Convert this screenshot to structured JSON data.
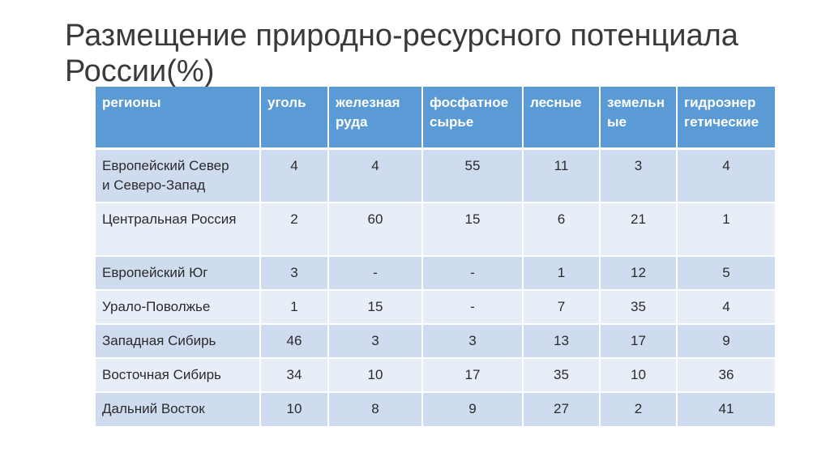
{
  "title": {
    "line1": "Размещение природно-ресурсного потенциала",
    "line2": "России(%)"
  },
  "table": {
    "headers": [
      {
        "line1": "регионы",
        "line2": ""
      },
      {
        "line1": "уголь",
        "line2": ""
      },
      {
        "line1": "железная",
        "line2": "руда"
      },
      {
        "line1": "фосфатное",
        "line2": "сырье"
      },
      {
        "line1": "лесные",
        "line2": ""
      },
      {
        "line1": "земельн",
        "line2": "ые"
      },
      {
        "line1": "гидроэнер",
        "line2": "гетические"
      }
    ],
    "rows": [
      {
        "region_line1": "Европейский Север",
        "region_line2": "и Северо-Запад",
        "cells": [
          "4",
          "4",
          "55",
          "11",
          "3",
          "4"
        ]
      },
      {
        "region_line1": "Центральная Россия",
        "region_line2": "",
        "cells": [
          "2",
          "60",
          "15",
          "6",
          "21",
          "1"
        ]
      },
      {
        "region_line1": "Европейский Юг",
        "region_line2": "",
        "cells": [
          "3",
          "-",
          "-",
          "1",
          "12",
          "5"
        ]
      },
      {
        "region_line1": "Урало-Поволжье",
        "region_line2": "",
        "cells": [
          "1",
          "15",
          "-",
          "7",
          "35",
          "4"
        ]
      },
      {
        "region_line1": "Западная Сибирь",
        "region_line2": "",
        "cells": [
          "46",
          "3",
          "3",
          "13",
          "17",
          "9"
        ]
      },
      {
        "region_line1": "Восточная Сибирь",
        "region_line2": "",
        "cells": [
          "34",
          "10",
          "17",
          "35",
          "10",
          "36"
        ]
      },
      {
        "region_line1": "Дальний Восток",
        "region_line2": "",
        "cells": [
          "10",
          "8",
          "9",
          "27",
          "2",
          "41"
        ]
      }
    ]
  }
}
